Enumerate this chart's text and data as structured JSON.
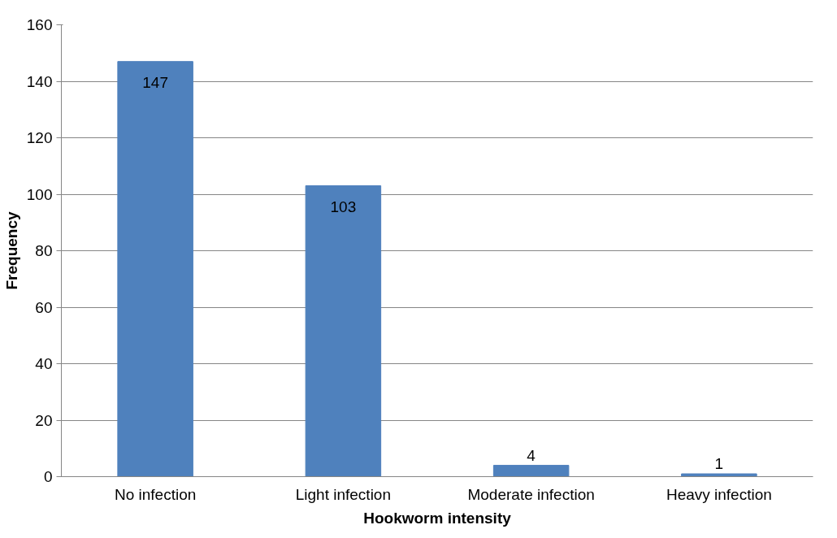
{
  "chart_data": {
    "type": "bar",
    "xlabel": "Hookworm intensity",
    "ylabel": "Frequency",
    "categories": [
      "No infection",
      "Light infection",
      "Moderate infection",
      "Heavy infection"
    ],
    "values": [
      147,
      103,
      4,
      1
    ],
    "color": "#4f81bd",
    "ylim": [
      0,
      160
    ],
    "yticks": [
      0,
      20,
      40,
      60,
      80,
      100,
      120,
      140,
      160
    ],
    "grid": "y",
    "data_labels": true
  }
}
